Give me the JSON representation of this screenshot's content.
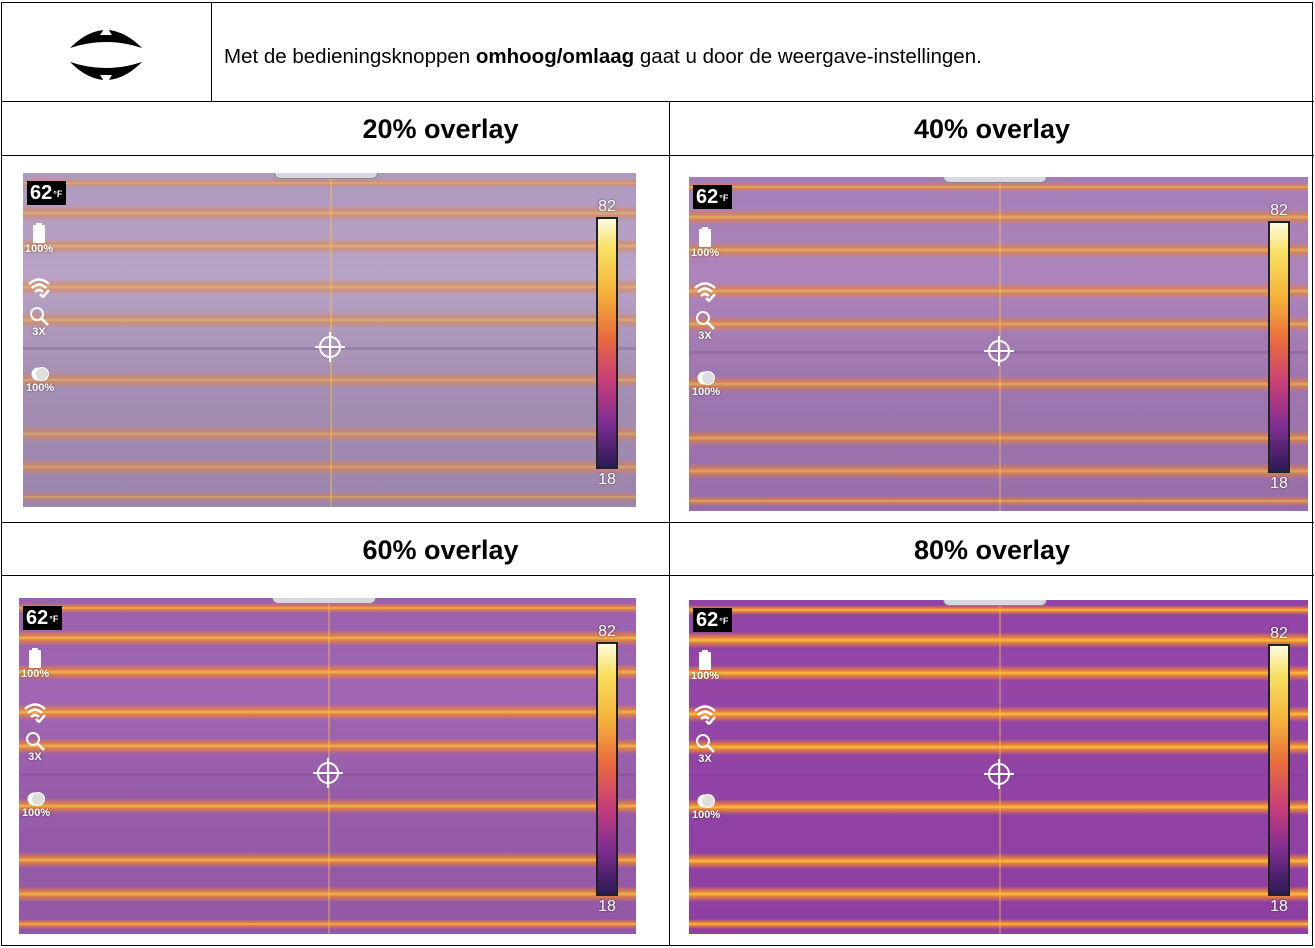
{
  "instruction": {
    "prefix": "Met de bedieningsknoppen ",
    "bold": "omhoog/omlaag",
    "suffix": " gaat u door de weergave-instellingen.",
    "icon": "up-down-nav-buttons-icon"
  },
  "panels": [
    {
      "title": "20% overlay",
      "overlay": 0.2,
      "temperature": "62",
      "unit": "°F",
      "battery": "100%",
      "zoom": "3X",
      "blend": "100%",
      "scale_max": "82",
      "scale_min": "18"
    },
    {
      "title": "40% overlay",
      "overlay": 0.4,
      "temperature": "62",
      "unit": "°F",
      "battery": "100%",
      "zoom": "3X",
      "blend": "100%",
      "scale_max": "82",
      "scale_min": "18"
    },
    {
      "title": "60% overlay",
      "overlay": 0.6,
      "temperature": "62",
      "unit": "°F",
      "battery": "100%",
      "zoom": "3X",
      "blend": "100%",
      "scale_max": "82",
      "scale_min": "18"
    },
    {
      "title": "80% overlay",
      "overlay": 0.8,
      "temperature": "62",
      "unit": "°F",
      "battery": "100%",
      "zoom": "3X",
      "blend": "100%",
      "scale_max": "82",
      "scale_min": "18"
    }
  ],
  "icons": {
    "battery": "battery-icon",
    "wifi": "wifi-icon",
    "zoom": "magnifier-icon",
    "blend": "blend-icon",
    "crosshair": "crosshair-icon"
  },
  "colors": {
    "hot": "#f6c13f",
    "warm": "#e0744a",
    "cool": "#8a2fa0",
    "cold": "#2c1a55"
  }
}
